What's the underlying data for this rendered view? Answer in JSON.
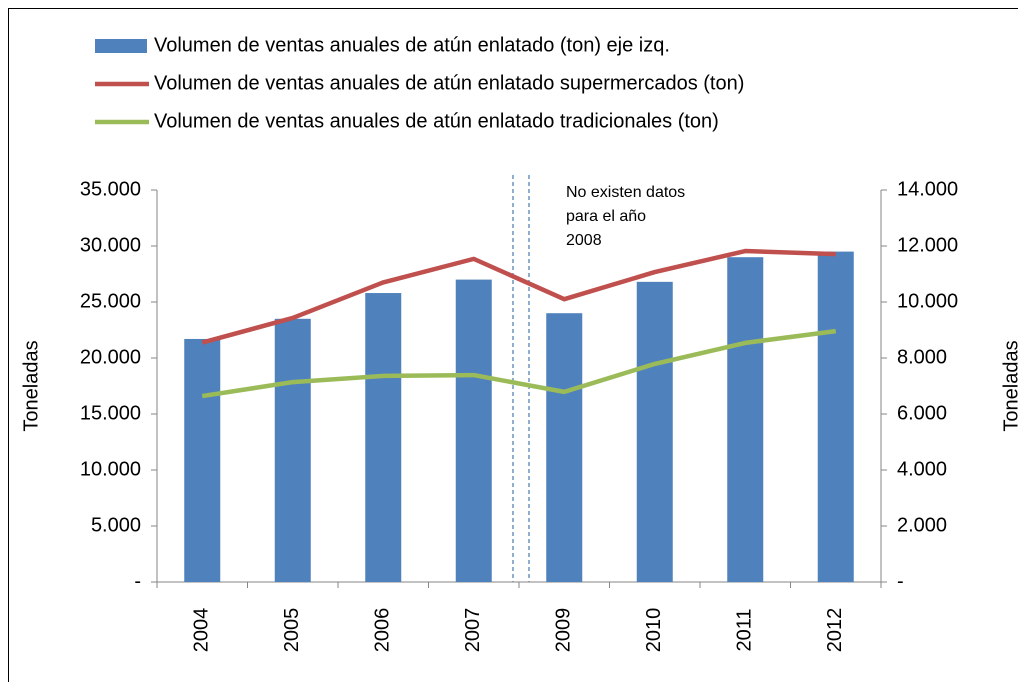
{
  "chart_data": {
    "type": "bar_line",
    "categories": [
      "2004",
      "2005",
      "2006",
      "2007",
      "2009",
      "2010",
      "2011",
      "2012"
    ],
    "series": [
      {
        "name": "Volumen de ventas anuales de atún enlatado (ton) eje izq.",
        "color": "#4f81bd",
        "type": "bar",
        "values": [
          21700,
          23500,
          25800,
          27000,
          24000,
          26800,
          29000,
          29500
        ]
      },
      {
        "name": "Volumen de ventas anuales de atún enlatado supermercados (ton)",
        "color": "#c0504d",
        "type": "line",
        "axis": "y2",
        "values": [
          8550,
          9430,
          10700,
          11540,
          10100,
          11070,
          11820,
          11710
        ]
      },
      {
        "name": "Volumen de ventas anuales de atún enlatado tradicionales (ton)",
        "color": "#9bbb59",
        "type": "line",
        "axis": "y2",
        "values": [
          6640,
          7140,
          7360,
          7390,
          6790,
          7790,
          8540,
          8960
        ]
      }
    ],
    "ylabel": "Toneladas",
    "y2label": "Toneladas",
    "ylim": [
      0,
      35000
    ],
    "yticks": [
      {
        "value": 0,
        "label": "-"
      },
      {
        "value": 5000,
        "label": "5.000"
      },
      {
        "value": 10000,
        "label": "10.000"
      },
      {
        "value": 15000,
        "label": "15.000"
      },
      {
        "value": 20000,
        "label": "20.000"
      },
      {
        "value": 25000,
        "label": "25.000"
      },
      {
        "value": 30000,
        "label": "30.000"
      },
      {
        "value": 35000,
        "label": "35.000"
      }
    ],
    "y2lim": [
      0,
      14000
    ],
    "y2ticks": [
      {
        "value": 0,
        "label": "-"
      },
      {
        "value": 2000,
        "label": "2.000"
      },
      {
        "value": 4000,
        "label": "4.000"
      },
      {
        "value": 6000,
        "label": "6.000"
      },
      {
        "value": 8000,
        "label": "8.000"
      },
      {
        "value": 10000,
        "label": "10.000"
      },
      {
        "value": 12000,
        "label": "12.000"
      },
      {
        "value": 14000,
        "label": "14.000"
      }
    ],
    "annotation": [
      "No existen datos",
      "para el año",
      "2008"
    ]
  }
}
